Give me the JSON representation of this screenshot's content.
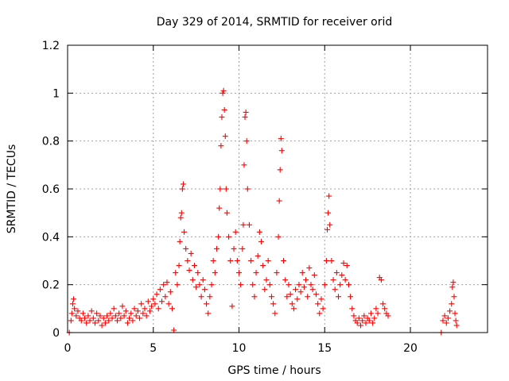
{
  "chart_data": {
    "type": "scatter",
    "title": "Day 329 of 2014, SRMTID for receiver orid",
    "xlabel": "GPS time / hours",
    "ylabel": "SRMTID / TECUs",
    "xlim": [
      0,
      24.5
    ],
    "ylim": [
      0,
      1.2
    ],
    "xticks": [
      0,
      5,
      10,
      15,
      20
    ],
    "xtick_labels": [
      "0",
      "5",
      "10",
      "15",
      "20"
    ],
    "yticks": [
      0,
      0.2,
      0.4,
      0.6,
      0.8,
      1,
      1.2
    ],
    "ytick_labels": [
      "0",
      "0.2",
      "0.4",
      "0.6",
      "0.8",
      "1",
      "1.2"
    ],
    "grid": true,
    "marker": "+",
    "color": "#ff0000",
    "series": [
      {
        "name": "SRMTID",
        "points": [
          [
            0.1,
            0.0
          ],
          [
            0.2,
            0.05
          ],
          [
            0.25,
            0.08
          ],
          [
            0.3,
            0.12
          ],
          [
            0.35,
            0.14
          ],
          [
            0.4,
            0.1
          ],
          [
            0.5,
            0.07
          ],
          [
            0.6,
            0.09
          ],
          [
            0.7,
            0.06
          ],
          [
            0.8,
            0.05
          ],
          [
            0.9,
            0.08
          ],
          [
            1.0,
            0.06
          ],
          [
            1.1,
            0.04
          ],
          [
            1.2,
            0.07
          ],
          [
            1.3,
            0.05
          ],
          [
            1.4,
            0.09
          ],
          [
            1.5,
            0.06
          ],
          [
            1.6,
            0.04
          ],
          [
            1.7,
            0.08
          ],
          [
            1.8,
            0.05
          ],
          [
            1.9,
            0.07
          ],
          [
            2.0,
            0.03
          ],
          [
            2.1,
            0.06
          ],
          [
            2.2,
            0.04
          ],
          [
            2.3,
            0.07
          ],
          [
            2.4,
            0.05
          ],
          [
            2.5,
            0.08
          ],
          [
            2.6,
            0.06
          ],
          [
            2.7,
            0.1
          ],
          [
            2.8,
            0.07
          ],
          [
            2.9,
            0.05
          ],
          [
            3.0,
            0.08
          ],
          [
            3.1,
            0.06
          ],
          [
            3.2,
            0.11
          ],
          [
            3.3,
            0.07
          ],
          [
            3.4,
            0.09
          ],
          [
            3.5,
            0.04
          ],
          [
            3.6,
            0.06
          ],
          [
            3.7,
            0.08
          ],
          [
            3.8,
            0.05
          ],
          [
            3.9,
            0.1
          ],
          [
            4.0,
            0.07
          ],
          [
            4.1,
            0.09
          ],
          [
            4.2,
            0.06
          ],
          [
            4.3,
            0.12
          ],
          [
            4.4,
            0.08
          ],
          [
            4.5,
            0.1
          ],
          [
            4.6,
            0.07
          ],
          [
            4.7,
            0.13
          ],
          [
            4.8,
            0.09
          ],
          [
            4.9,
            0.11
          ],
          [
            5.0,
            0.14
          ],
          [
            5.1,
            0.12
          ],
          [
            5.2,
            0.16
          ],
          [
            5.3,
            0.1
          ],
          [
            5.4,
            0.18
          ],
          [
            5.5,
            0.13
          ],
          [
            5.6,
            0.2
          ],
          [
            5.7,
            0.15
          ],
          [
            5.8,
            0.21
          ],
          [
            5.9,
            0.12
          ],
          [
            6.0,
            0.17
          ],
          [
            6.1,
            0.1
          ],
          [
            6.2,
            0.01
          ],
          [
            6.3,
            0.25
          ],
          [
            6.4,
            0.2
          ],
          [
            6.5,
            0.28
          ],
          [
            6.55,
            0.38
          ],
          [
            6.6,
            0.48
          ],
          [
            6.65,
            0.5
          ],
          [
            6.7,
            0.6
          ],
          [
            6.75,
            0.62
          ],
          [
            6.8,
            0.42
          ],
          [
            6.9,
            0.35
          ],
          [
            7.0,
            0.3
          ],
          [
            7.1,
            0.26
          ],
          [
            7.2,
            0.33
          ],
          [
            7.3,
            0.22
          ],
          [
            7.4,
            0.28
          ],
          [
            7.5,
            0.19
          ],
          [
            7.6,
            0.25
          ],
          [
            7.7,
            0.2
          ],
          [
            7.8,
            0.15
          ],
          [
            7.9,
            0.22
          ],
          [
            8.0,
            0.18
          ],
          [
            8.1,
            0.12
          ],
          [
            8.2,
            0.08
          ],
          [
            8.3,
            0.15
          ],
          [
            8.4,
            0.2
          ],
          [
            8.5,
            0.3
          ],
          [
            8.6,
            0.25
          ],
          [
            8.7,
            0.35
          ],
          [
            8.8,
            0.4
          ],
          [
            8.85,
            0.52
          ],
          [
            8.9,
            0.6
          ],
          [
            8.95,
            0.78
          ],
          [
            9.0,
            0.9
          ],
          [
            9.05,
            1.0
          ],
          [
            9.1,
            1.01
          ],
          [
            9.15,
            0.93
          ],
          [
            9.2,
            0.82
          ],
          [
            9.25,
            0.6
          ],
          [
            9.3,
            0.5
          ],
          [
            9.4,
            0.4
          ],
          [
            9.5,
            0.3
          ],
          [
            9.6,
            0.11
          ],
          [
            9.7,
            0.35
          ],
          [
            9.8,
            0.42
          ],
          [
            9.9,
            0.3
          ],
          [
            10.0,
            0.25
          ],
          [
            10.1,
            0.2
          ],
          [
            10.2,
            0.35
          ],
          [
            10.25,
            0.45
          ],
          [
            10.3,
            0.7
          ],
          [
            10.35,
            0.9
          ],
          [
            10.4,
            0.92
          ],
          [
            10.45,
            0.8
          ],
          [
            10.5,
            0.6
          ],
          [
            10.6,
            0.45
          ],
          [
            10.7,
            0.3
          ],
          [
            10.8,
            0.2
          ],
          [
            10.9,
            0.15
          ],
          [
            11.0,
            0.25
          ],
          [
            11.1,
            0.32
          ],
          [
            11.2,
            0.42
          ],
          [
            11.3,
            0.38
          ],
          [
            11.4,
            0.28
          ],
          [
            11.5,
            0.18
          ],
          [
            11.6,
            0.22
          ],
          [
            11.7,
            0.3
          ],
          [
            11.8,
            0.2
          ],
          [
            11.9,
            0.15
          ],
          [
            12.0,
            0.12
          ],
          [
            12.1,
            0.08
          ],
          [
            12.2,
            0.25
          ],
          [
            12.3,
            0.4
          ],
          [
            12.35,
            0.55
          ],
          [
            12.4,
            0.68
          ],
          [
            12.45,
            0.81
          ],
          [
            12.5,
            0.76
          ],
          [
            12.6,
            0.3
          ],
          [
            12.7,
            0.22
          ],
          [
            12.8,
            0.15
          ],
          [
            12.9,
            0.2
          ],
          [
            13.0,
            0.16
          ],
          [
            13.1,
            0.12
          ],
          [
            13.2,
            0.1
          ],
          [
            13.3,
            0.18
          ],
          [
            13.4,
            0.14
          ],
          [
            13.5,
            0.2
          ],
          [
            13.6,
            0.17
          ],
          [
            13.7,
            0.25
          ],
          [
            13.8,
            0.19
          ],
          [
            13.9,
            0.22
          ],
          [
            14.0,
            0.15
          ],
          [
            14.1,
            0.27
          ],
          [
            14.2,
            0.2
          ],
          [
            14.3,
            0.18
          ],
          [
            14.4,
            0.24
          ],
          [
            14.5,
            0.16
          ],
          [
            14.6,
            0.12
          ],
          [
            14.7,
            0.08
          ],
          [
            14.8,
            0.14
          ],
          [
            14.9,
            0.1
          ],
          [
            15.0,
            0.2
          ],
          [
            15.1,
            0.3
          ],
          [
            15.15,
            0.43
          ],
          [
            15.2,
            0.5
          ],
          [
            15.25,
            0.57
          ],
          [
            15.3,
            0.45
          ],
          [
            15.4,
            0.3
          ],
          [
            15.5,
            0.22
          ],
          [
            15.6,
            0.18
          ],
          [
            15.7,
            0.25
          ],
          [
            15.8,
            0.15
          ],
          [
            15.9,
            0.2
          ],
          [
            16.0,
            0.24
          ],
          [
            16.1,
            0.29
          ],
          [
            16.2,
            0.22
          ],
          [
            16.3,
            0.28
          ],
          [
            16.4,
            0.2
          ],
          [
            16.5,
            0.15
          ],
          [
            16.6,
            0.1
          ],
          [
            16.7,
            0.07
          ],
          [
            16.8,
            0.05
          ],
          [
            16.9,
            0.04
          ],
          [
            17.0,
            0.06
          ],
          [
            17.1,
            0.03
          ],
          [
            17.2,
            0.05
          ],
          [
            17.3,
            0.07
          ],
          [
            17.4,
            0.04
          ],
          [
            17.5,
            0.06
          ],
          [
            17.6,
            0.05
          ],
          [
            17.7,
            0.08
          ],
          [
            17.8,
            0.04
          ],
          [
            17.9,
            0.06
          ],
          [
            18.0,
            0.1
          ],
          [
            18.1,
            0.08
          ],
          [
            18.2,
            0.23
          ],
          [
            18.3,
            0.22
          ],
          [
            18.4,
            0.12
          ],
          [
            18.5,
            0.1
          ],
          [
            18.6,
            0.08
          ],
          [
            18.7,
            0.07
          ],
          [
            21.8,
            0.0
          ],
          [
            21.9,
            0.05
          ],
          [
            22.0,
            0.07
          ],
          [
            22.1,
            0.04
          ],
          [
            22.2,
            0.06
          ],
          [
            22.3,
            0.09
          ],
          [
            22.4,
            0.12
          ],
          [
            22.45,
            0.19
          ],
          [
            22.5,
            0.21
          ],
          [
            22.55,
            0.15
          ],
          [
            22.6,
            0.08
          ],
          [
            22.65,
            0.05
          ],
          [
            22.7,
            0.03
          ]
        ]
      }
    ]
  }
}
